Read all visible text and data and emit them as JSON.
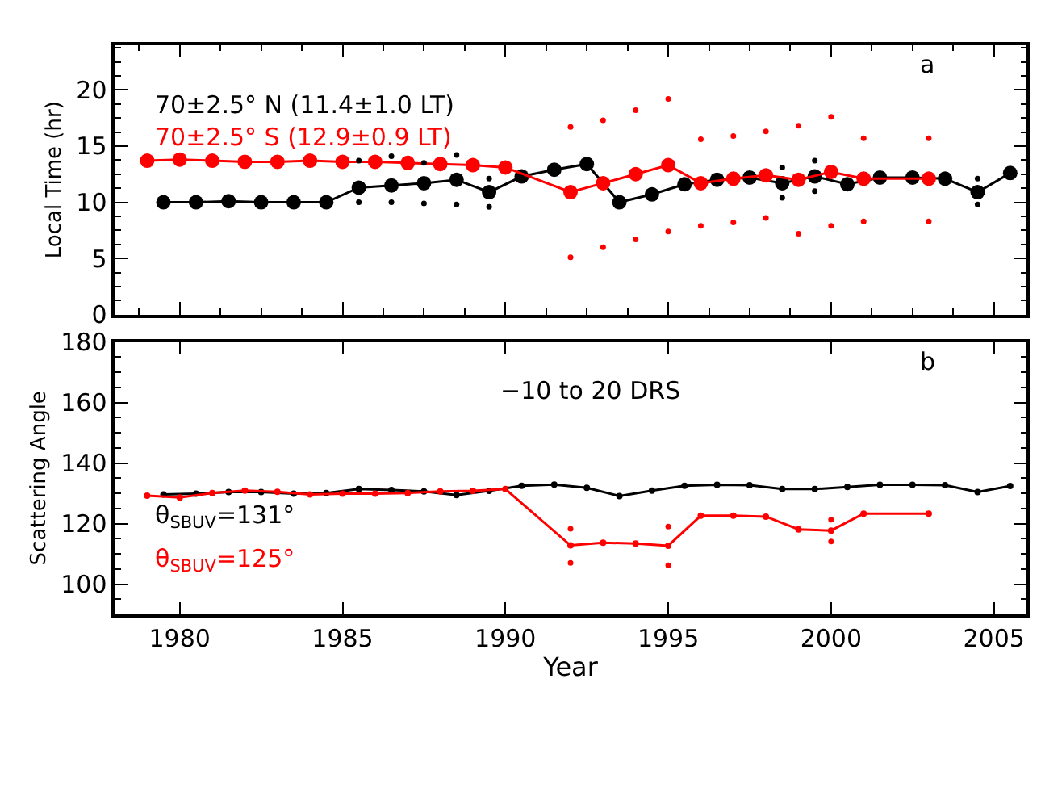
{
  "chart_data": [
    {
      "type": "line",
      "ylabel": "Local Time (hr)",
      "xlim": [
        1978,
        2006
      ],
      "xticks": [
        1980,
        1985,
        1990,
        1995,
        2000,
        2005
      ],
      "ylim": [
        0,
        24
      ],
      "yticks": [
        0,
        5,
        10,
        15,
        20
      ],
      "tick_labels": "y",
      "legend": false,
      "marker": "circle",
      "annotations": [
        "a"
      ],
      "series": [
        {
          "name": "70±2.5° N (11.4±1.0 LT)",
          "color": "#000000",
          "x": [
            1979.5,
            1980.5,
            1981.5,
            1982.5,
            1983.5,
            1984.5,
            1985.5,
            1986.5,
            1987.5,
            1988.5,
            1989.5,
            1990.5,
            1991.5,
            1992.5,
            1993.5,
            1994.5,
            1995.5,
            1996.5,
            1997.5,
            1998.5,
            1999.5,
            2000.5,
            2001.5,
            2002.5,
            2003.5,
            2004.5,
            2005.5
          ],
          "values": [
            10.0,
            10.0,
            10.1,
            10.0,
            10.0,
            10.0,
            11.3,
            11.5,
            11.7,
            12.0,
            10.9,
            12.3,
            12.9,
            13.4,
            10.0,
            10.7,
            11.6,
            12.0,
            12.2,
            11.7,
            12.3,
            11.6,
            12.2,
            12.2,
            12.1,
            10.9,
            12.6
          ]
        },
        {
          "name": "70±2.5° S (12.9±0.9 LT)",
          "color": "#ff0000",
          "x": [
            1979,
            1980,
            1981,
            1982,
            1983,
            1984,
            1985,
            1986,
            1987,
            1988,
            1989,
            1990,
            1992,
            1993,
            1994,
            1995,
            1996,
            1997,
            1998,
            1999,
            2000,
            2001,
            2003
          ],
          "values": [
            13.7,
            13.8,
            13.7,
            13.6,
            13.6,
            13.7,
            13.6,
            13.6,
            13.5,
            13.4,
            13.3,
            13.1,
            10.9,
            11.7,
            12.5,
            13.3,
            11.7,
            12.1,
            12.4,
            12.0,
            12.7,
            12.1,
            12.1
          ]
        },
        {
          "type": "scatter",
          "color": "#000000",
          "x": [
            1985.5,
            1985.5,
            1986.5,
            1986.5,
            1987.5,
            1987.5,
            1988.5,
            1988.5,
            1989.5,
            1989.5,
            1998.5,
            1998.5,
            1999.5,
            1999.5,
            2004.5,
            2004.5
          ],
          "values": [
            13.7,
            10.0,
            14.1,
            10.0,
            13.5,
            9.9,
            14.2,
            9.8,
            12.1,
            9.6,
            13.1,
            10.4,
            13.7,
            11.0,
            12.1,
            9.8
          ]
        },
        {
          "type": "scatter",
          "color": "#ff0000",
          "x": [
            1992,
            1992,
            1993,
            1993,
            1994,
            1994,
            1995,
            1995,
            1996,
            1996,
            1997,
            1997,
            1998,
            1998,
            1999,
            1999,
            2000,
            2000,
            2001,
            2001,
            2003,
            2003
          ],
          "values": [
            16.7,
            5.1,
            17.3,
            6.0,
            18.2,
            6.7,
            19.2,
            7.4,
            15.6,
            7.9,
            15.9,
            8.2,
            16.3,
            8.6,
            16.8,
            7.2,
            17.6,
            7.9,
            15.7,
            8.3,
            15.7,
            8.3
          ]
        }
      ]
    },
    {
      "type": "line",
      "xlabel": "Year",
      "ylabel": "Scattering Angle",
      "xlim": [
        1978,
        2006
      ],
      "xticks": [
        1980,
        1985,
        1990,
        1995,
        2000,
        2005
      ],
      "ylim": [
        90,
        180
      ],
      "yticks": [
        100,
        120,
        140,
        160,
        180
      ],
      "legend": false,
      "marker": "circle",
      "annotations": [
        "b",
        "−10 to 20 DRS"
      ],
      "series": [
        {
          "name": "θ$_{SBUV}$=131°",
          "color": "#000000",
          "x": [
            1979.5,
            1980.5,
            1981.5,
            1982.5,
            1983.5,
            1984.5,
            1985.5,
            1986.5,
            1987.5,
            1988.5,
            1989.5,
            1990.5,
            1991.5,
            1992.5,
            1993.5,
            1994.5,
            1995.5,
            1996.5,
            1997.5,
            1998.5,
            1999.5,
            2000.5,
            2001.5,
            2002.5,
            2003.5,
            2004.5,
            2005.5
          ],
          "values": [
            129.6,
            129.9,
            130.4,
            130.4,
            129.9,
            130.1,
            131.4,
            131.1,
            130.6,
            129.4,
            130.8,
            132.5,
            132.9,
            131.8,
            129.1,
            130.9,
            132.5,
            132.8,
            132.7,
            131.4,
            131.4,
            132.1,
            132.8,
            132.8,
            132.7,
            130.4,
            132.4
          ]
        },
        {
          "name": "θ$_{SBUV}$=125°",
          "color": "#ff0000",
          "x": [
            1979,
            1980,
            1981,
            1982,
            1983,
            1984,
            1985,
            1986,
            1987,
            1988,
            1989,
            1990,
            1992,
            1993,
            1994,
            1995,
            1996,
            1997,
            1998,
            1999,
            2000,
            2001,
            2003
          ],
          "values": [
            129.2,
            128.6,
            130.1,
            130.9,
            130.5,
            129.6,
            129.9,
            129.9,
            130.1,
            130.6,
            130.8,
            131.4,
            112.8,
            113.7,
            113.4,
            112.7,
            122.6,
            122.6,
            122.3,
            118.1,
            117.7,
            123.3,
            123.3
          ]
        },
        {
          "type": "scatter",
          "color": "#ff0000",
          "x": [
            1992,
            1992,
            1995,
            1995,
            2000,
            2000
          ],
          "values": [
            118.3,
            107.0,
            119.0,
            106.2,
            121.3,
            114.1
          ]
        }
      ]
    }
  ]
}
